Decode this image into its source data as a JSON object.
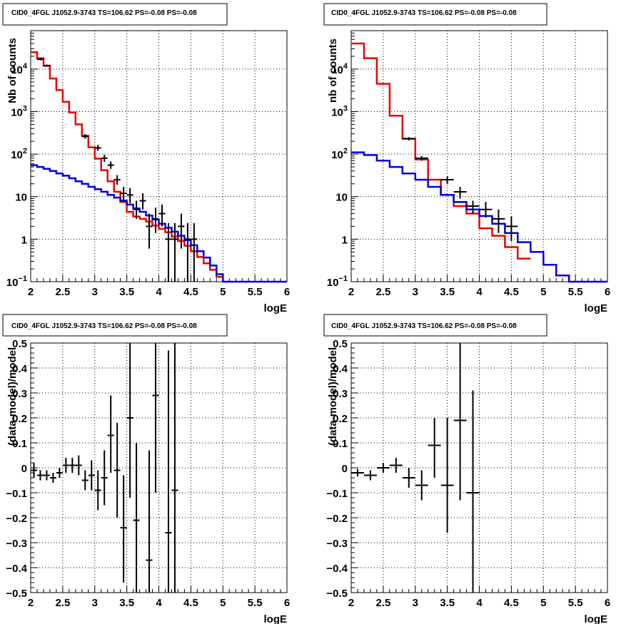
{
  "chart_data": [
    {
      "type": "line",
      "title": "CID0_4FGL J1052.9-3743 TS=106.62 PS=-0.08 PS=-0.08",
      "xlabel": "logE",
      "ylabel": "Nb of counts",
      "xlim": [
        2,
        6
      ],
      "ylim": [
        0.1,
        80000
      ],
      "yscale": "log",
      "grid": true,
      "xticks": [
        "2",
        "2.5",
        "3",
        "3.5",
        "4",
        "4.5",
        "5",
        "5.5",
        "6"
      ],
      "yticks": [
        {
          "v": 0.1,
          "base": "10",
          "exp": "−1"
        },
        {
          "v": 1,
          "label": "1"
        },
        {
          "v": 10,
          "label": "10"
        },
        {
          "v": 100,
          "base": "10",
          "exp": "2"
        },
        {
          "v": 1000,
          "base": "10",
          "exp": "3"
        },
        {
          "v": 10000,
          "base": "10",
          "exp": "4"
        }
      ],
      "series": [
        {
          "color": "#ee0000",
          "style": "step",
          "bin_edges": [
            2,
            2.1,
            2.2,
            2.3,
            2.4,
            2.5,
            2.6,
            2.7,
            2.8,
            2.9,
            3,
            3.1,
            3.2,
            3.3,
            3.4,
            3.5,
            3.6,
            3.7,
            3.8,
            3.9,
            4,
            4.1,
            4.2,
            4.3,
            4.4,
            4.5,
            4.6,
            4.7,
            4.8,
            4.9,
            5
          ],
          "values": [
            25000,
            18000,
            12000,
            6000,
            3200,
            1700,
            950,
            500,
            270,
            145,
            78,
            42,
            23,
            13,
            7.5,
            4.4,
            3.4,
            3.0,
            2.6,
            2.1,
            1.75,
            1.45,
            1.15,
            0.9,
            0.7,
            0.52,
            0.38,
            0.27,
            0.19,
            0.13
          ]
        },
        {
          "color": "#0000dd",
          "style": "step",
          "bin_edges": [
            2,
            2.1,
            2.2,
            2.3,
            2.4,
            2.5,
            2.6,
            2.7,
            2.8,
            2.9,
            3,
            3.1,
            3.2,
            3.3,
            3.4,
            3.5,
            3.6,
            3.7,
            3.8,
            3.9,
            4,
            4.1,
            4.2,
            4.3,
            4.4,
            4.5,
            4.6,
            4.7,
            4.8,
            4.9,
            5,
            6
          ],
          "values": [
            55,
            50,
            45,
            40,
            35,
            31,
            27,
            23,
            20,
            17,
            15,
            13,
            11,
            9.5,
            8,
            6.5,
            5.3,
            4.4,
            3.6,
            2.9,
            2.3,
            1.85,
            1.5,
            1.2,
            0.95,
            0.72,
            0.52,
            0.37,
            0.24,
            0.15,
            0.1
          ]
        },
        {
          "color": "#000000",
          "style": "errorbars",
          "points": [
            {
              "x": 2.15,
              "y": 17000,
              "lo": 16000,
              "hi": 18200,
              "xerr": 0.05
            },
            {
              "x": 2.25,
              "y": 12000,
              "lo": 11300,
              "hi": 12800,
              "xerr": 0.05
            },
            {
              "x": 2.85,
              "y": 260,
              "lo": 230,
              "hi": 295,
              "xerr": 0.05
            },
            {
              "x": 3.05,
              "y": 140,
              "lo": 120,
              "hi": 165,
              "xerr": 0.05
            },
            {
              "x": 3.15,
              "y": 80,
              "lo": 66,
              "hi": 96,
              "xerr": 0.05
            },
            {
              "x": 3.25,
              "y": 55,
              "lo": 45,
              "hi": 67,
              "xerr": 0.05
            },
            {
              "x": 3.35,
              "y": 25,
              "lo": 19,
              "hi": 32,
              "xerr": 0.05
            },
            {
              "x": 3.45,
              "y": 12,
              "lo": 8,
              "hi": 17,
              "xerr": 0.05
            },
            {
              "x": 3.55,
              "y": 11,
              "lo": 7,
              "hi": 16,
              "xerr": 0.05
            },
            {
              "x": 3.65,
              "y": 5,
              "lo": 3,
              "hi": 8,
              "xerr": 0.05
            },
            {
              "x": 3.75,
              "y": 8,
              "lo": 5,
              "hi": 12,
              "xerr": 0.05
            },
            {
              "x": 3.85,
              "y": 2,
              "lo": 0.6,
              "hi": 4,
              "xerr": 0.05
            },
            {
              "x": 3.95,
              "y": 3,
              "lo": 1.4,
              "hi": 5.5,
              "xerr": 0.05
            },
            {
              "x": 4.05,
              "y": 4,
              "lo": 2,
              "hi": 6.5,
              "xerr": 0.05
            },
            {
              "x": 4.15,
              "y": 1,
              "lo": 0.1,
              "hi": 2.4,
              "xerr": 0.05
            },
            {
              "x": 4.25,
              "y": 1,
              "lo": 0.1,
              "hi": 2.4,
              "xerr": 0.05
            },
            {
              "x": 4.35,
              "y": 2,
              "lo": 0.6,
              "hi": 4,
              "xerr": 0.05
            },
            {
              "x": 4.45,
              "y": 1,
              "lo": 0.1,
              "hi": 2.4,
              "xerr": 0.05
            },
            {
              "x": 4.55,
              "y": 1,
              "lo": 0.1,
              "hi": 2.4,
              "xerr": 0.05
            }
          ]
        }
      ]
    },
    {
      "type": "line",
      "title": "CID0_4FGL J1052.9-3743 TS=106.62 PS=-0.08 PS=-0.08",
      "xlabel": "logE",
      "ylabel": "nb of counts",
      "xlim": [
        2,
        6
      ],
      "ylim": [
        0.1,
        80000
      ],
      "yscale": "log",
      "grid": true,
      "xticks": [
        "2",
        "2.5",
        "3",
        "3.5",
        "4",
        "4.5",
        "5",
        "5.5",
        "6"
      ],
      "yticks": [
        {
          "v": 0.1,
          "base": "10",
          "exp": "−1"
        },
        {
          "v": 1,
          "label": "1"
        },
        {
          "v": 10,
          "label": "10"
        },
        {
          "v": 100,
          "base": "10",
          "exp": "2"
        },
        {
          "v": 1000,
          "base": "10",
          "exp": "3"
        },
        {
          "v": 10000,
          "base": "10",
          "exp": "4"
        }
      ],
      "series": [
        {
          "color": "#ee0000",
          "style": "step",
          "bin_edges": [
            2,
            2.2,
            2.4,
            2.6,
            2.8,
            3,
            3.2,
            3.4,
            3.6,
            3.8,
            4,
            4.2,
            4.4,
            4.6,
            4.8
          ],
          "values": [
            40000,
            18000,
            4500,
            800,
            230,
            75,
            25,
            11,
            6,
            4,
            1.8,
            1.2,
            0.65,
            0.35
          ]
        },
        {
          "color": "#0000dd",
          "style": "step",
          "bin_edges": [
            2,
            2.2,
            2.4,
            2.6,
            2.8,
            3,
            3.2,
            3.4,
            3.6,
            3.8,
            4,
            4.2,
            4.4,
            4.6,
            4.8,
            5,
            5.2,
            5.4,
            6
          ],
          "values": [
            110,
            95,
            70,
            50,
            35,
            25,
            17,
            11,
            7.5,
            5,
            3.5,
            2.3,
            1.4,
            0.85,
            0.5,
            0.25,
            0.14,
            0.1
          ]
        },
        {
          "color": "#000000",
          "style": "errorbars",
          "points": [
            {
              "x": 2.9,
              "y": 230,
              "lo": 210,
              "hi": 250,
              "xerr": 0.1
            },
            {
              "x": 3.1,
              "y": 80,
              "lo": 70,
              "hi": 90,
              "xerr": 0.1
            },
            {
              "x": 3.5,
              "y": 25,
              "lo": 20,
              "hi": 30,
              "xerr": 0.1
            },
            {
              "x": 3.7,
              "y": 13,
              "lo": 9,
              "hi": 17,
              "xerr": 0.1
            },
            {
              "x": 3.9,
              "y": 6,
              "lo": 4,
              "hi": 8,
              "xerr": 0.1
            },
            {
              "x": 4.1,
              "y": 5,
              "lo": 3.2,
              "hi": 7.5,
              "xerr": 0.1
            },
            {
              "x": 4.3,
              "y": 3,
              "lo": 1.4,
              "hi": 5,
              "xerr": 0.1
            },
            {
              "x": 4.5,
              "y": 2,
              "lo": 0.9,
              "hi": 3.4,
              "xerr": 0.1
            }
          ]
        }
      ]
    },
    {
      "type": "scatter",
      "title": "CID0_4FGL J1052.9-3743 TS=106.62 PS=-0.08 PS=-0.08",
      "xlabel": "logE",
      "ylabel": "(data-model)/model",
      "xlim": [
        2,
        6
      ],
      "ylim": [
        -0.5,
        0.5
      ],
      "grid": true,
      "xticks": [
        "2",
        "2.5",
        "3",
        "3.5",
        "4",
        "4.5",
        "5",
        "5.5",
        "6"
      ],
      "yticks": [
        "−0.5",
        "−0.4",
        "−0.3",
        "−0.2",
        "−0.1",
        "0",
        "0.1",
        "0.2",
        "0.3",
        "0.4",
        "0.5"
      ],
      "series": [
        {
          "color": "#000000",
          "style": "errorbars",
          "points": [
            {
              "x": 2.05,
              "y": -0.01,
              "lo": -0.04,
              "hi": 0.02,
              "xerr": 0.05
            },
            {
              "x": 2.15,
              "y": -0.03,
              "lo": -0.05,
              "hi": -0.01,
              "xerr": 0.05
            },
            {
              "x": 2.25,
              "y": -0.03,
              "lo": -0.05,
              "hi": -0.01,
              "xerr": 0.05
            },
            {
              "x": 2.35,
              "y": -0.04,
              "lo": -0.06,
              "hi": -0.02,
              "xerr": 0.05
            },
            {
              "x": 2.45,
              "y": -0.02,
              "lo": -0.04,
              "hi": 0.0,
              "xerr": 0.05
            },
            {
              "x": 2.55,
              "y": 0.01,
              "lo": -0.02,
              "hi": 0.04,
              "xerr": 0.05
            },
            {
              "x": 2.65,
              "y": 0.01,
              "lo": -0.02,
              "hi": 0.04,
              "xerr": 0.05
            },
            {
              "x": 2.75,
              "y": 0.01,
              "lo": -0.03,
              "hi": 0.05,
              "xerr": 0.05
            },
            {
              "x": 2.85,
              "y": -0.05,
              "lo": -0.09,
              "hi": -0.01,
              "xerr": 0.05
            },
            {
              "x": 2.95,
              "y": -0.03,
              "lo": -0.09,
              "hi": 0.03,
              "xerr": 0.05
            },
            {
              "x": 3.05,
              "y": -0.09,
              "lo": -0.17,
              "hi": -0.01,
              "xerr": 0.05
            },
            {
              "x": 3.15,
              "y": -0.04,
              "lo": -0.15,
              "hi": 0.07,
              "xerr": 0.05
            },
            {
              "x": 3.25,
              "y": 0.13,
              "lo": -0.02,
              "hi": 0.29,
              "xerr": 0.05
            },
            {
              "x": 3.35,
              "y": -0.01,
              "lo": -0.2,
              "hi": 0.18,
              "xerr": 0.05
            },
            {
              "x": 3.45,
              "y": -0.24,
              "lo": -0.46,
              "hi": -0.03,
              "xerr": 0.05
            },
            {
              "x": 3.55,
              "y": 0.2,
              "lo": -0.12,
              "hi": 0.52,
              "xerr": 0.05
            },
            {
              "x": 3.65,
              "y": -0.21,
              "lo": -0.52,
              "hi": 0.1,
              "xerr": 0.05
            },
            {
              "x": 3.85,
              "y": -0.37,
              "lo": -0.52,
              "hi": 0.07,
              "xerr": 0.05
            },
            {
              "x": 3.95,
              "y": 0.29,
              "lo": -0.1,
              "hi": 0.52,
              "xerr": 0.05
            },
            {
              "x": 4.15,
              "y": -0.26,
              "lo": -0.52,
              "hi": 0.47,
              "xerr": 0.05
            },
            {
              "x": 4.25,
              "y": -0.09,
              "lo": -0.52,
              "hi": 0.52,
              "xerr": 0.05
            }
          ]
        }
      ]
    },
    {
      "type": "scatter",
      "title": "CID0_4FGL J1052.9-3743 TS=106.62 PS=-0.08 PS=-0.08",
      "xlabel": "logE",
      "ylabel": "(data-model)/model",
      "xlim": [
        2,
        6
      ],
      "ylim": [
        -0.5,
        0.5
      ],
      "grid": true,
      "xticks": [
        "2",
        "2.5",
        "3",
        "3.5",
        "4",
        "4.5",
        "5",
        "5.5",
        "6"
      ],
      "yticks": [
        "−0.5",
        "−0.4",
        "−0.3",
        "−0.2",
        "−0.1",
        "0",
        "0.1",
        "0.2",
        "0.3",
        "0.4",
        "0.5"
      ],
      "series": [
        {
          "color": "#000000",
          "style": "errorbars",
          "points": [
            {
              "x": 2.1,
              "y": -0.02,
              "lo": -0.035,
              "hi": -0.005,
              "xerr": 0.1
            },
            {
              "x": 2.3,
              "y": -0.03,
              "lo": -0.05,
              "hi": -0.01,
              "xerr": 0.1
            },
            {
              "x": 2.5,
              "y": 0.0,
              "lo": -0.02,
              "hi": 0.02,
              "xerr": 0.1
            },
            {
              "x": 2.7,
              "y": 0.01,
              "lo": -0.02,
              "hi": 0.04,
              "xerr": 0.1
            },
            {
              "x": 2.9,
              "y": -0.04,
              "lo": -0.08,
              "hi": 0.0,
              "xerr": 0.1
            },
            {
              "x": 3.1,
              "y": -0.07,
              "lo": -0.13,
              "hi": -0.01,
              "xerr": 0.1
            },
            {
              "x": 3.3,
              "y": 0.09,
              "lo": -0.04,
              "hi": 0.2,
              "xerr": 0.1
            },
            {
              "x": 3.5,
              "y": -0.07,
              "lo": -0.26,
              "hi": 0.2,
              "xerr": 0.1
            },
            {
              "x": 3.7,
              "y": 0.19,
              "lo": -0.13,
              "hi": 0.52,
              "xerr": 0.1
            },
            {
              "x": 3.9,
              "y": -0.1,
              "lo": -0.52,
              "hi": 0.31,
              "xerr": 0.1
            }
          ]
        }
      ]
    }
  ]
}
